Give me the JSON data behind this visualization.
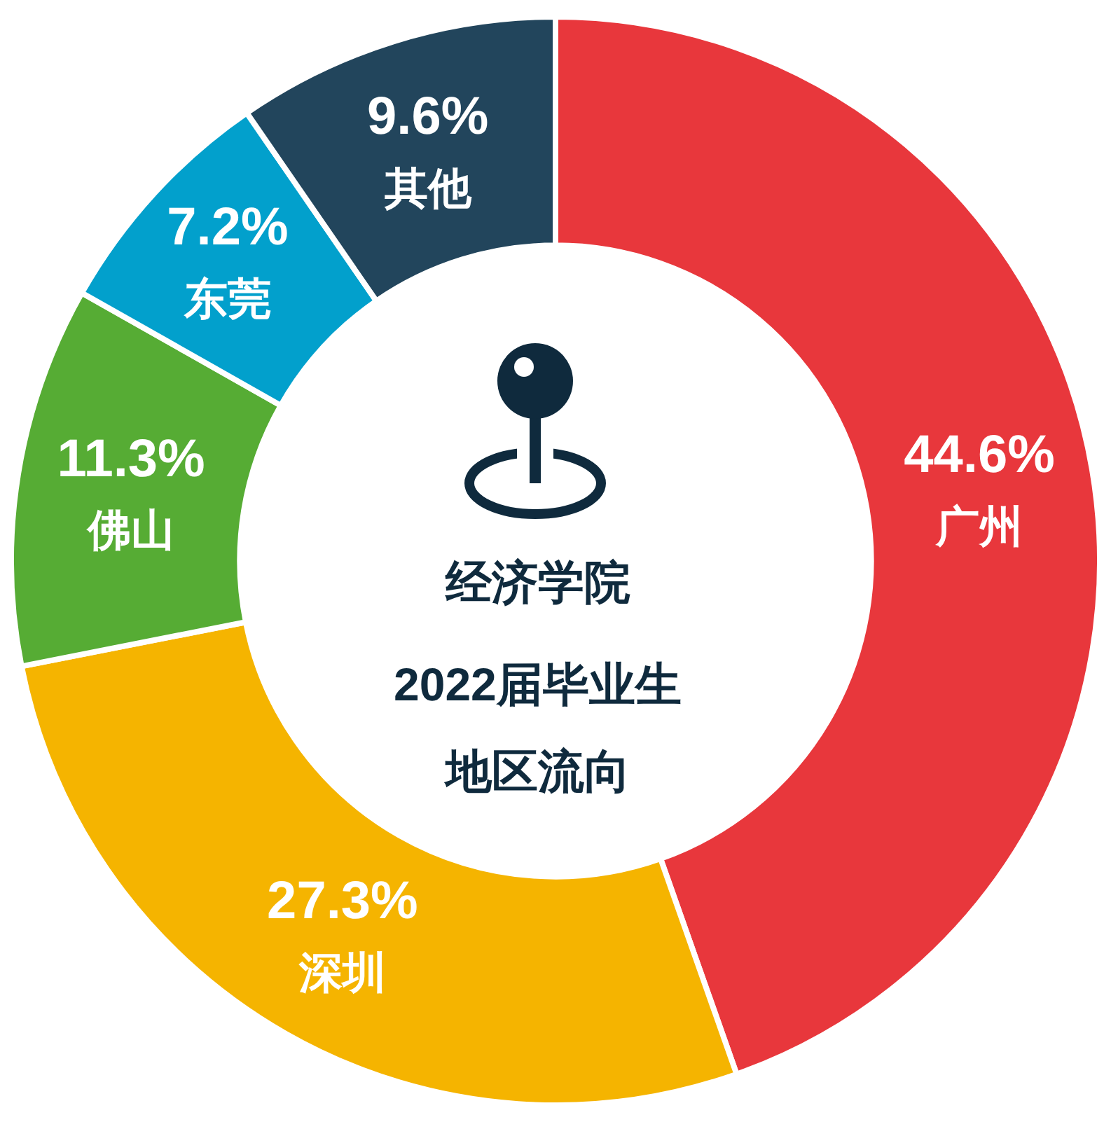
{
  "chart_data": {
    "type": "donut",
    "title": "经济学院",
    "subtitle": "2022届毕业生",
    "annotations": [
      "地区流向"
    ],
    "categories": [
      "广州",
      "深圳",
      "佛山",
      "东莞",
      "其他"
    ],
    "values": [
      44.6,
      27.3,
      11.3,
      7.2,
      9.6
    ],
    "value_labels": [
      "44.6%",
      "27.3%",
      "11.3%",
      "7.2%",
      "9.6%"
    ],
    "colors": [
      "#e8373c",
      "#f5b400",
      "#56ac34",
      "#02a0cc",
      "#22455c"
    ]
  }
}
